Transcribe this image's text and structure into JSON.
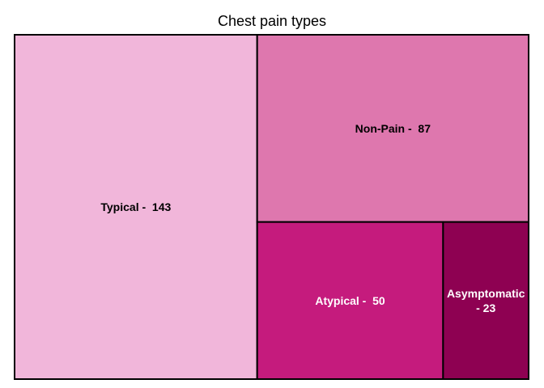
{
  "chart_data": {
    "type": "treemap",
    "title": "Chest pain types",
    "items": [
      {
        "name": "Typical",
        "value": 143,
        "label_lines": [
          "Typical -  143"
        ],
        "color": "#f1b6da",
        "label_color": "#000000"
      },
      {
        "name": "Non-Pain",
        "value": 87,
        "label_lines": [
          "Non-Pain -  87"
        ],
        "color": "#de77ae",
        "label_color": "#000000"
      },
      {
        "name": "Atypical",
        "value": 50,
        "label_lines": [
          "Atypical -  50"
        ],
        "color": "#c51b7d",
        "label_color": "#ffffff"
      },
      {
        "name": "Asymptomatic",
        "value": 23,
        "label_lines": [
          "Asymptomatic",
          "- 23"
        ],
        "color": "#8e0152",
        "label_color": "#ffffff"
      }
    ]
  }
}
